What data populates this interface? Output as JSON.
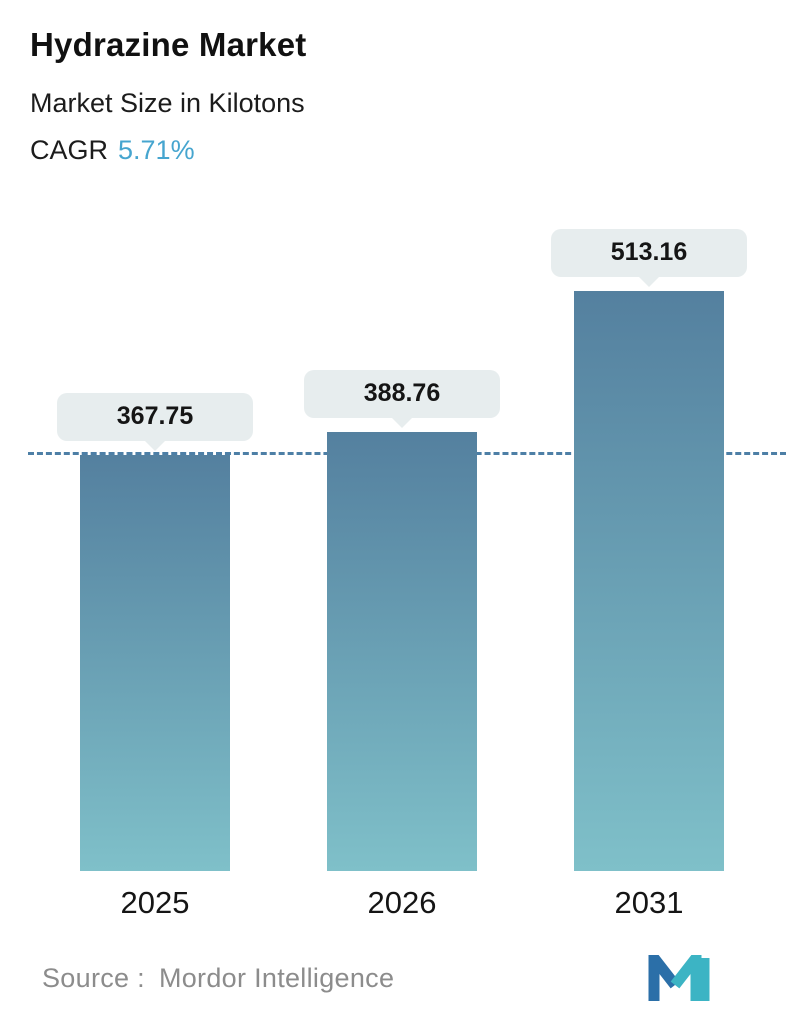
{
  "header": {
    "title": "Hydrazine Market",
    "subtitle": "Market Size in Kilotons",
    "cagr_label": "CAGR",
    "cagr_value": "5.71%"
  },
  "chart_data": {
    "type": "bar",
    "title": "Hydrazine Market",
    "subtitle": "Market Size in Kilotons",
    "cagr_percent": 5.71,
    "categories": [
      "2025",
      "2026",
      "2031"
    ],
    "values": [
      367.75,
      388.76,
      513.16
    ],
    "value_labels": [
      "367.75",
      "388.76",
      "513.16"
    ],
    "xlabel": "",
    "ylabel": "Market Size in Kilotons",
    "ylim": [
      0,
      560
    ],
    "grid": false,
    "legend": false,
    "baseline": {
      "value": 367.75,
      "style": "dashed",
      "aligned_to": "2025 bar top"
    },
    "colors": {
      "accent": "#46a5cf",
      "bar_gradient_top": "#54809f",
      "bar_gradient_bottom": "#7fc0c9",
      "callout_bg": "#e7edee",
      "dashed_line": "#4d7fa6",
      "title": "#111111",
      "source_text": "#8c8c8c",
      "logo_dark_blue": "#2b6fa8",
      "logo_teal": "#3cb4c4"
    }
  },
  "footer": {
    "source_label": "Source :",
    "source_value": "Mordor Intelligence",
    "logo": "mordor-intelligence-logo"
  }
}
